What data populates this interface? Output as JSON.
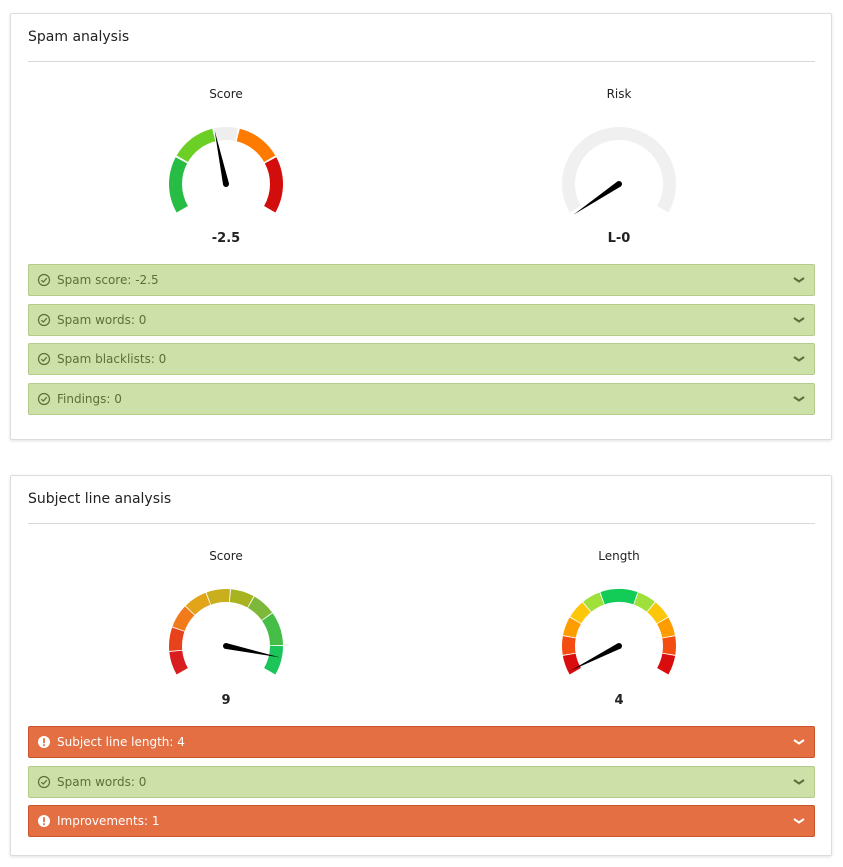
{
  "panels": [
    {
      "title": "Spam analysis",
      "gauges": [
        {
          "label": "Score",
          "value": "-2.5"
        },
        {
          "label": "Risk",
          "value": "L-0"
        }
      ],
      "items": [
        {
          "text": "Spam score: -2.5",
          "status": "ok"
        },
        {
          "text": "Spam words: 0",
          "status": "ok"
        },
        {
          "text": "Spam blacklists: 0",
          "status": "ok"
        },
        {
          "text": "Findings: 0",
          "status": "ok"
        }
      ]
    },
    {
      "title": "Subject line analysis",
      "gauges": [
        {
          "label": "Score",
          "value": "9"
        },
        {
          "label": "Length",
          "value": "4"
        }
      ],
      "items": [
        {
          "text": "Subject line length: 4",
          "status": "warn"
        },
        {
          "text": "Spam words: 0",
          "status": "ok"
        },
        {
          "text": "Improvements: 1",
          "status": "warn"
        }
      ]
    }
  ]
}
